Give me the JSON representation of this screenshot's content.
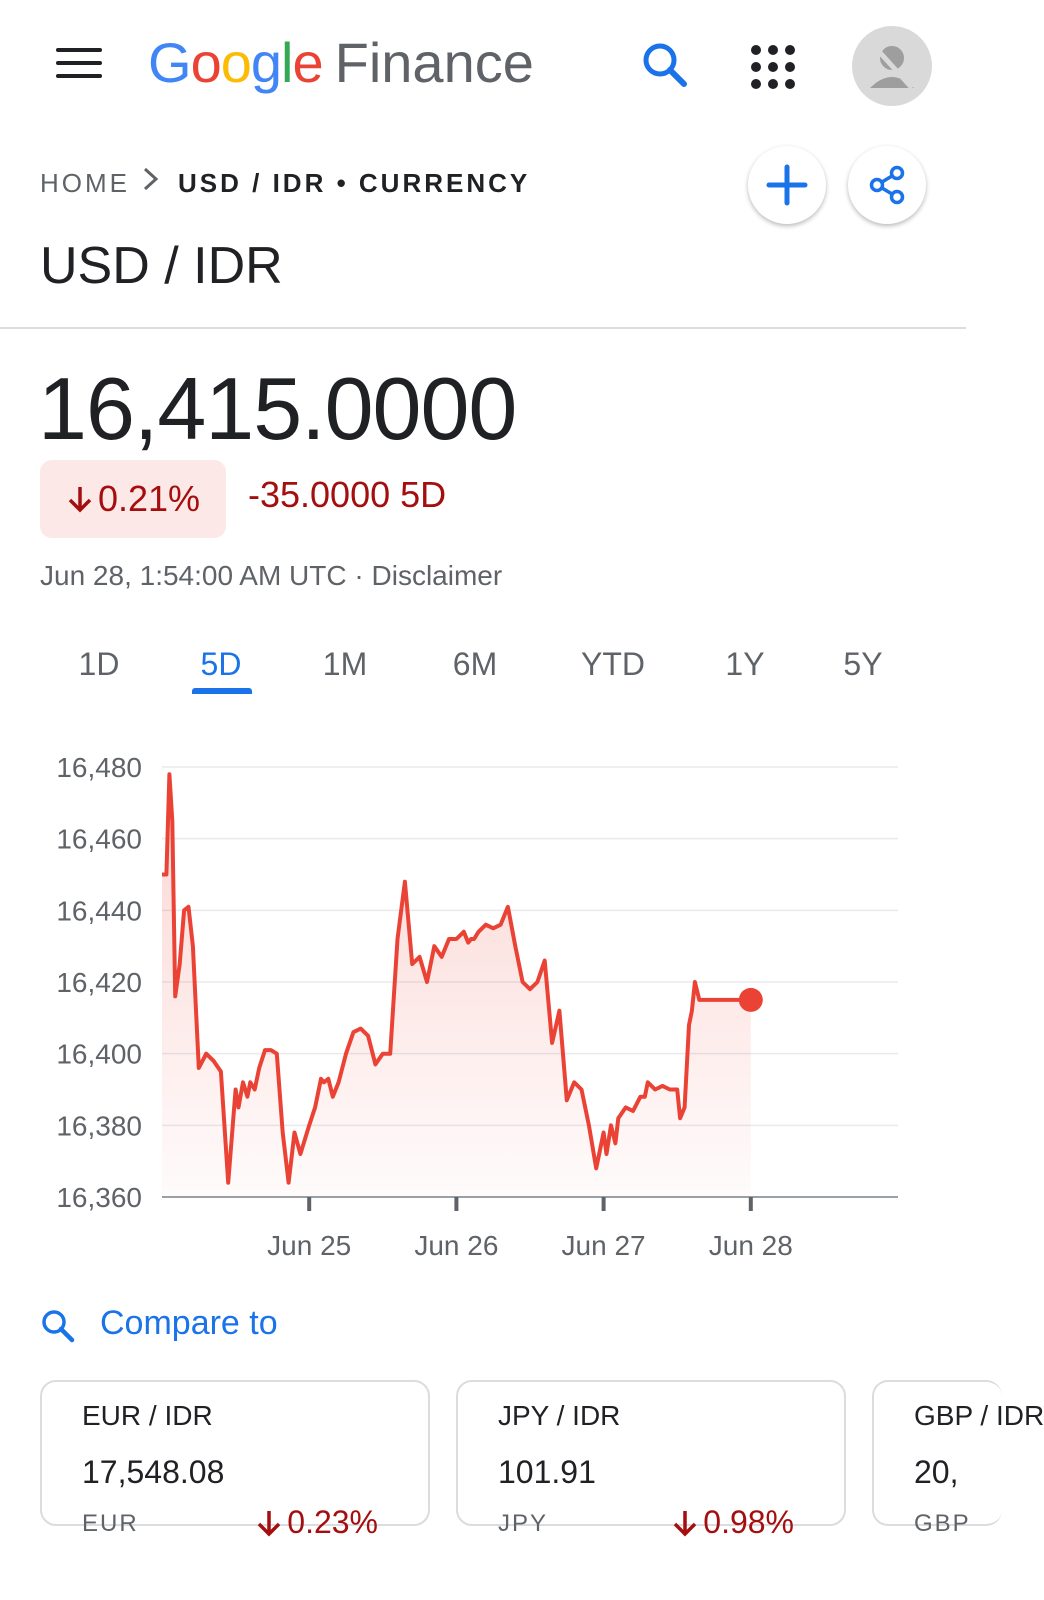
{
  "app": {
    "logo_google": "Google",
    "logo_finance": "Finance"
  },
  "icons": {
    "menu": "menu-icon",
    "search": "search-icon",
    "apps": "apps-grid-icon",
    "avatar": "account-avatar-icon",
    "add": "plus-icon",
    "share": "share-icon",
    "down": "arrow-down-icon"
  },
  "colors": {
    "accent": "#1a73e8",
    "negative": "#a50e0e",
    "line": "#ea4335",
    "badge_bg": "#fce8e6"
  },
  "breadcrumb": {
    "home": "HOME",
    "current": "USD / IDR • CURRENCY"
  },
  "header": {
    "title": "USD / IDR"
  },
  "quote": {
    "price": "16,415.0000",
    "change_pct": "0.21%",
    "change_abs": "-35.0000 5D",
    "timestamp": "Jun 28, 1:54:00 AM UTC",
    "separator": "·",
    "disclaimer": "Disclaimer"
  },
  "tabs": [
    {
      "label": "1D",
      "active": false
    },
    {
      "label": "5D",
      "active": true
    },
    {
      "label": "1M",
      "active": false
    },
    {
      "label": "6M",
      "active": false
    },
    {
      "label": "YTD",
      "active": false
    },
    {
      "label": "1Y",
      "active": false
    },
    {
      "label": "5Y",
      "active": false
    }
  ],
  "chart_data": {
    "type": "area",
    "title": "",
    "xlabel": "",
    "ylabel": "",
    "ylim": [
      16360,
      16480
    ],
    "yticks": [
      16480,
      16460,
      16440,
      16420,
      16400,
      16380,
      16360
    ],
    "ytick_labels": [
      "16,480",
      "16,460",
      "16,440",
      "16,420",
      "16,400",
      "16,380",
      "16,360"
    ],
    "xlim": [
      0,
      5
    ],
    "xticks": [
      1,
      2,
      3,
      4
    ],
    "xtick_labels": [
      "Jun 25",
      "Jun 26",
      "Jun 27",
      "Jun 28"
    ],
    "grid": true,
    "series": [
      {
        "x": [
          0.0,
          0.03,
          0.05,
          0.07,
          0.09,
          0.12,
          0.15,
          0.18,
          0.21,
          0.25,
          0.3,
          0.35,
          0.4,
          0.45,
          0.5,
          0.52,
          0.55,
          0.58,
          0.6,
          0.63,
          0.66,
          0.7,
          0.74,
          0.78,
          0.82,
          0.86,
          0.9,
          0.94,
          1.0,
          1.04,
          1.08,
          1.1,
          1.13,
          1.16,
          1.2,
          1.25,
          1.3,
          1.35,
          1.4,
          1.45,
          1.5,
          1.55,
          1.6,
          1.65,
          1.7,
          1.75,
          1.8,
          1.85,
          1.9,
          1.95,
          2.0,
          2.05,
          2.08,
          2.1,
          2.12,
          2.15,
          2.2,
          2.25,
          2.3,
          2.35,
          2.4,
          2.45,
          2.5,
          2.55,
          2.6,
          2.65,
          2.7,
          2.75,
          2.8,
          2.85,
          2.9,
          2.95,
          3.0,
          3.02,
          3.05,
          3.08,
          3.1,
          3.15,
          3.2,
          3.25,
          3.28,
          3.3,
          3.35,
          3.4,
          3.45,
          3.5,
          3.52,
          3.55,
          3.58,
          3.6,
          3.62,
          3.65,
          3.7,
          3.75,
          3.8,
          3.85,
          3.9,
          3.92,
          3.95,
          3.97,
          3.98,
          4.0
        ],
        "values": [
          16450,
          16450,
          16478,
          16465,
          16416,
          16425,
          16440,
          16441,
          16430,
          16396,
          16400,
          16398,
          16395,
          16364,
          16390,
          16385,
          16392,
          16388,
          16392,
          16390,
          16396,
          16401,
          16401,
          16400,
          16378,
          16364,
          16378,
          16372,
          16380,
          16385,
          16393,
          16392,
          16393,
          16388,
          16392,
          16400,
          16406,
          16407,
          16405,
          16397,
          16400,
          16400,
          16432,
          16448,
          16425,
          16427,
          16420,
          16430,
          16427,
          16432,
          16432,
          16434,
          16431,
          16432,
          16432,
          16434,
          16436,
          16435,
          16436,
          16441,
          16430,
          16420,
          16418,
          16420,
          16426,
          16403,
          16412,
          16387,
          16392,
          16390,
          16380,
          16368,
          16378,
          16372,
          16380,
          16375,
          16382,
          16385,
          16384,
          16388,
          16388,
          16392,
          16390,
          16391,
          16390,
          16390,
          16382,
          16385,
          16408,
          16412,
          16420,
          16415,
          16415,
          16415,
          16415,
          16415,
          16415,
          16415,
          16415,
          16415,
          16415,
          16415
        ]
      }
    ],
    "last_point": {
      "x": 4.0,
      "value": 16415
    }
  },
  "compare": {
    "label": "Compare to"
  },
  "cards": [
    {
      "title": "EUR / IDR",
      "value": "17,548.08",
      "unit": "EUR",
      "change": "0.23%"
    },
    {
      "title": "JPY / IDR",
      "value": "101.91",
      "unit": "JPY",
      "change": "0.98%"
    },
    {
      "title": "GBP / IDR",
      "value": "20,",
      "unit": "GBP",
      "change": ""
    }
  ]
}
